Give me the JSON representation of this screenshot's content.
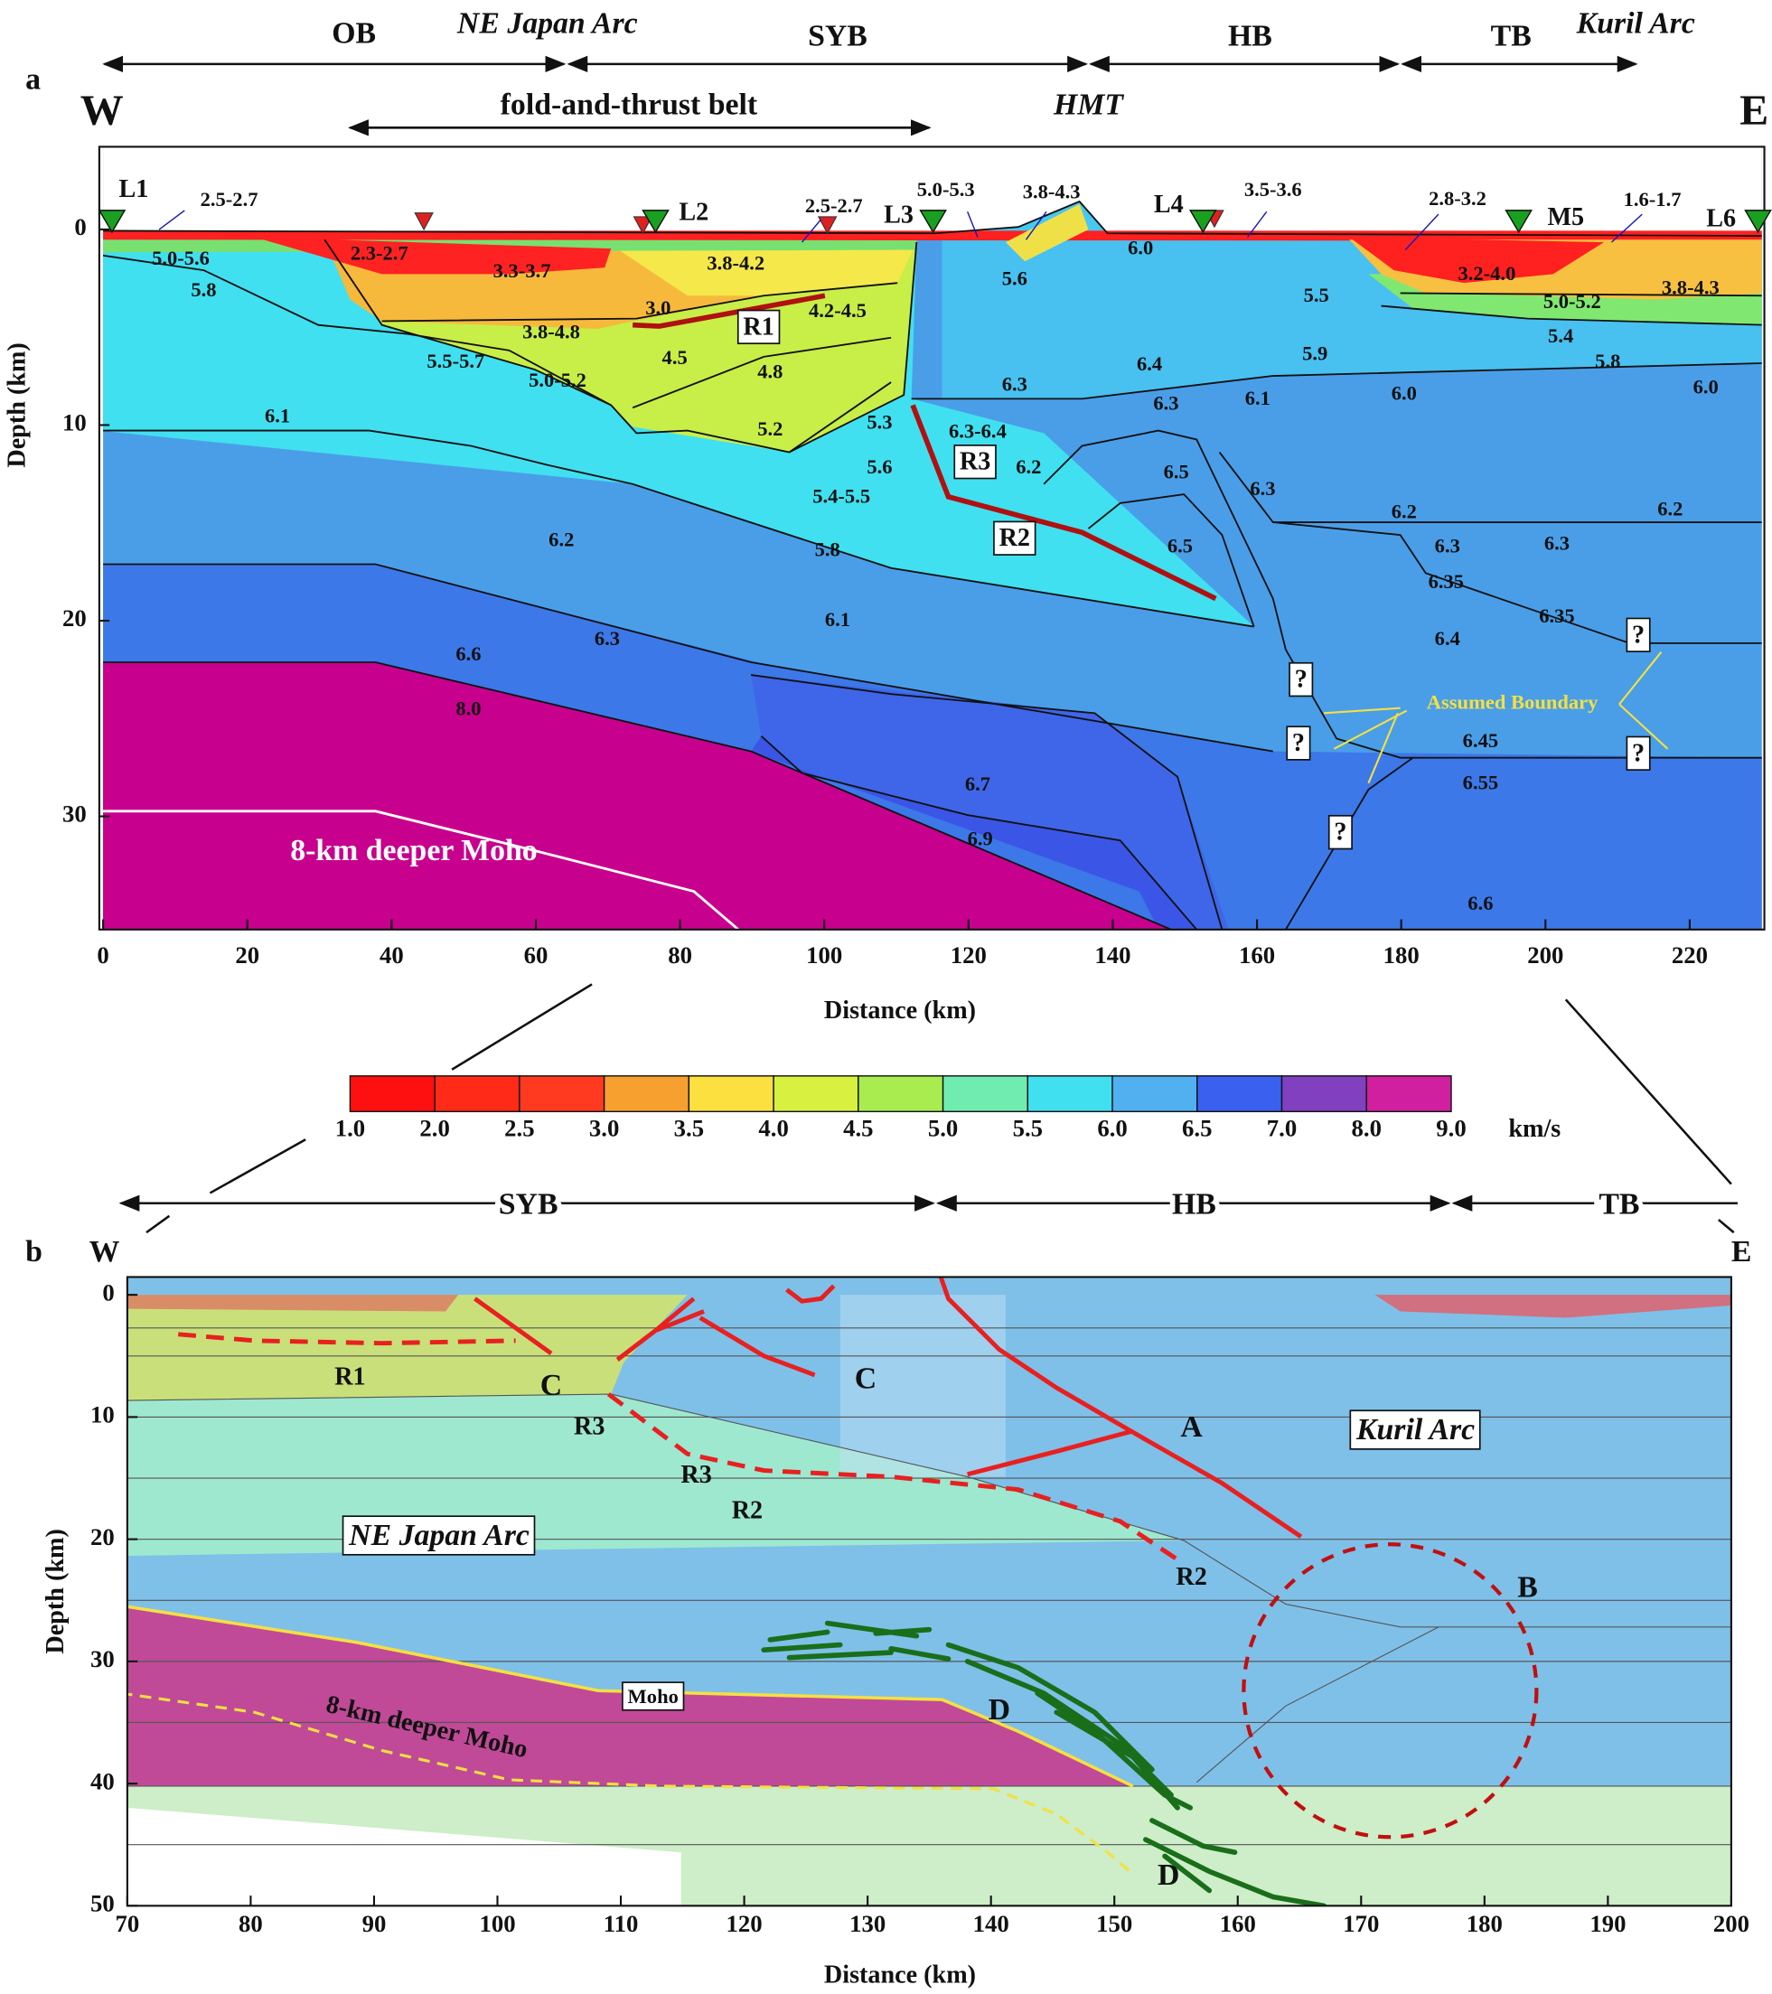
{
  "panel_a": {
    "panel_label": "a",
    "west": "W",
    "east": "E",
    "top_regions": [
      "OB",
      "NE Japan Arc",
      "SYB",
      "HB",
      "TB",
      "Kuril Arc"
    ],
    "fold_label": "fold-and-thrust belt",
    "fault_label": "HMT",
    "stations": [
      "L1",
      "L2",
      "L3",
      "L4",
      "M5",
      "L6"
    ],
    "velocity_labels": [
      "2.5-2.7",
      "2.3-2.7",
      "3.3-3.7",
      "3.8-4.2",
      "2.5-2.7",
      "5.0-5.3",
      "3.8-4.3",
      "3.5-3.6",
      "2.8-3.2",
      "1.6-1.7",
      "5.0-5.6",
      "5.8",
      "3.0",
      "4.2-4.5",
      "3.8-4.8",
      "5.6",
      "6.0",
      "5.5",
      "3.2-4.0",
      "3.8-4.3",
      "5.0-5.2",
      "5.4",
      "5.5-5.7",
      "5.0-5.2",
      "4.5",
      "4.8",
      "5.9",
      "5.8",
      "6.3",
      "6.4",
      "6.3",
      "6.1",
      "6.0",
      "6.0",
      "6.1",
      "5.3",
      "6.3-6.4",
      "5.2",
      "5.6",
      "6.2",
      "6.5",
      "6.3",
      "5.4-5.5",
      "6.2",
      "6.2",
      "6.5",
      "5.8",
      "6.2",
      "6.3",
      "6.3",
      "6.35",
      "6.1",
      "6.35",
      "6.4",
      "6.3",
      "6.6",
      "8.0",
      "6.45",
      "6.55",
      "6.7",
      "6.9",
      "6.6"
    ],
    "reflectors": [
      "R1",
      "R3",
      "R2"
    ],
    "question_marks": [
      "?",
      "?",
      "?",
      "?",
      "?"
    ],
    "assumed_boundary": "Assumed Boundary",
    "moho_label": "8-km deeper Moho",
    "xlabel": "Distance (km)",
    "ylabel": "Depth (km)",
    "xlim": [
      0,
      230
    ],
    "xticks": [
      0,
      20,
      40,
      60,
      80,
      100,
      120,
      140,
      160,
      180,
      200,
      220
    ],
    "ylim": [
      -4.2,
      35.8
    ],
    "yticks": [
      0,
      10,
      20,
      30
    ]
  },
  "colorbar": {
    "ticks": [
      {
        "value": 1,
        "label": "1.0"
      },
      {
        "value": 2,
        "label": "2.0"
      },
      2.5,
      {
        "value": 3,
        "label": "3.0"
      },
      3.5,
      {
        "value": 4,
        "label": "4.0"
      },
      4.5,
      {
        "value": 5,
        "label": "5.0"
      },
      5.5,
      {
        "value": 6,
        "label": "6.0"
      },
      6.5,
      {
        "value": 7,
        "label": "7.0"
      },
      {
        "value": 8,
        "label": "8.0"
      },
      {
        "value": 9,
        "label": "9.0"
      }
    ],
    "colors": [
      "#ff1010",
      "#ff2a18",
      "#ff3a20",
      "#f7a030",
      "#fbe040",
      "#d8f040",
      "#a8ec50",
      "#70ecb0",
      "#40e0f0",
      "#50b0f0",
      "#3a60f0",
      "#8040c0",
      "#d020a0"
    ],
    "unit": "km/s"
  },
  "panel_b": {
    "panel_label": "b",
    "west": "W",
    "east": "E",
    "top_regions": [
      "SYB",
      "HB",
      "TB"
    ],
    "labels": [
      "R1",
      "C",
      "C",
      "R3",
      "A",
      "R3",
      "R2",
      "R2",
      "B",
      "D",
      "D"
    ],
    "boxed_labels": [
      "Kuril Arc",
      "NE Japan Arc",
      "Moho"
    ],
    "moho_label": "8-km deeper Moho",
    "xlabel": "Distance (km)",
    "ylabel": "Depth (km)",
    "xlim": [
      70,
      200
    ],
    "xticks": [
      70,
      80,
      90,
      100,
      110,
      120,
      130,
      140,
      150,
      160,
      170,
      180,
      190,
      200
    ],
    "ylim": [
      -1.5,
      50
    ],
    "yticks": [
      0,
      10,
      20,
      30,
      40,
      50
    ]
  }
}
